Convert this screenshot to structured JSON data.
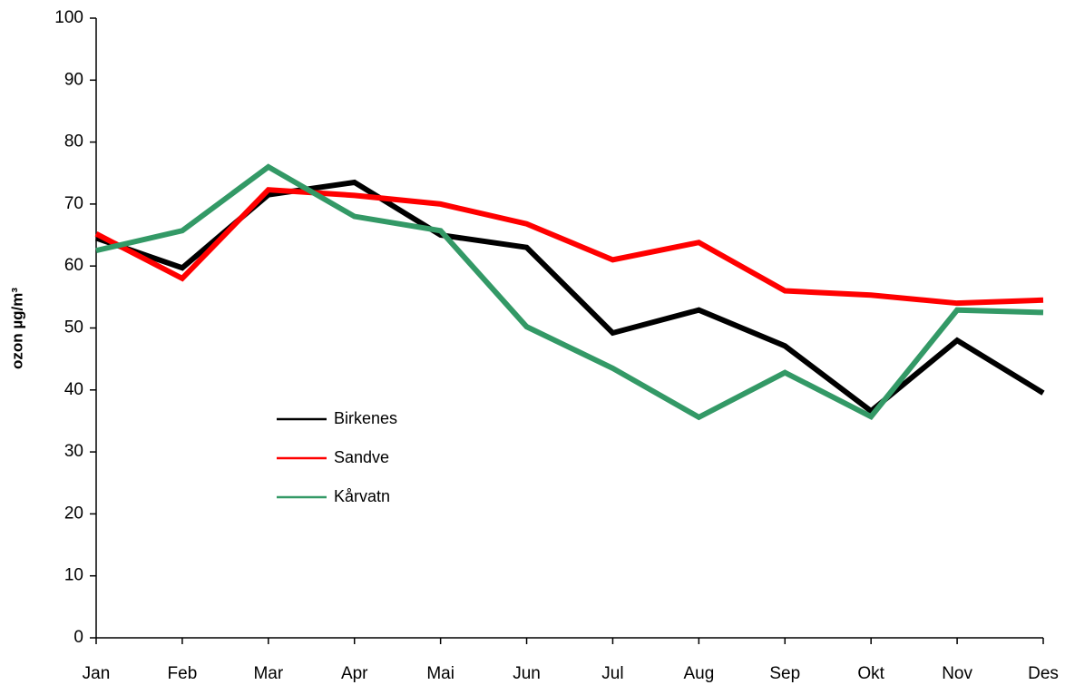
{
  "chart_data": {
    "type": "line",
    "y_label": "ozon µg/m³",
    "categories": [
      "Jan",
      "Feb",
      "Mar",
      "Apr",
      "Mai",
      "Jun",
      "Jul",
      "Aug",
      "Sep",
      "Okt",
      "Nov",
      "Des"
    ],
    "series": [
      {
        "name": "Birkenes",
        "color": "#000000",
        "values": [
          64.5,
          59.7,
          71.5,
          73.5,
          65,
          63,
          49.2,
          52.9,
          47.1,
          36.6,
          48,
          39.5
        ]
      },
      {
        "name": "Sandve",
        "color": "#ff0000",
        "values": [
          65.2,
          58,
          72.3,
          71.4,
          70,
          66.8,
          61,
          63.8,
          56,
          55.3,
          54,
          54.5
        ]
      },
      {
        "name": "Kårvatn",
        "color": "#339966",
        "values": [
          62.5,
          65.7,
          76,
          68,
          65.7,
          50.2,
          43.5,
          35.6,
          42.8,
          35.7,
          52.9,
          52.5
        ]
      }
    ],
    "ylim": [
      0,
      100
    ],
    "yticks": [
      0,
      10,
      20,
      30,
      40,
      50,
      60,
      70,
      80,
      90,
      100
    ],
    "grid": false
  }
}
